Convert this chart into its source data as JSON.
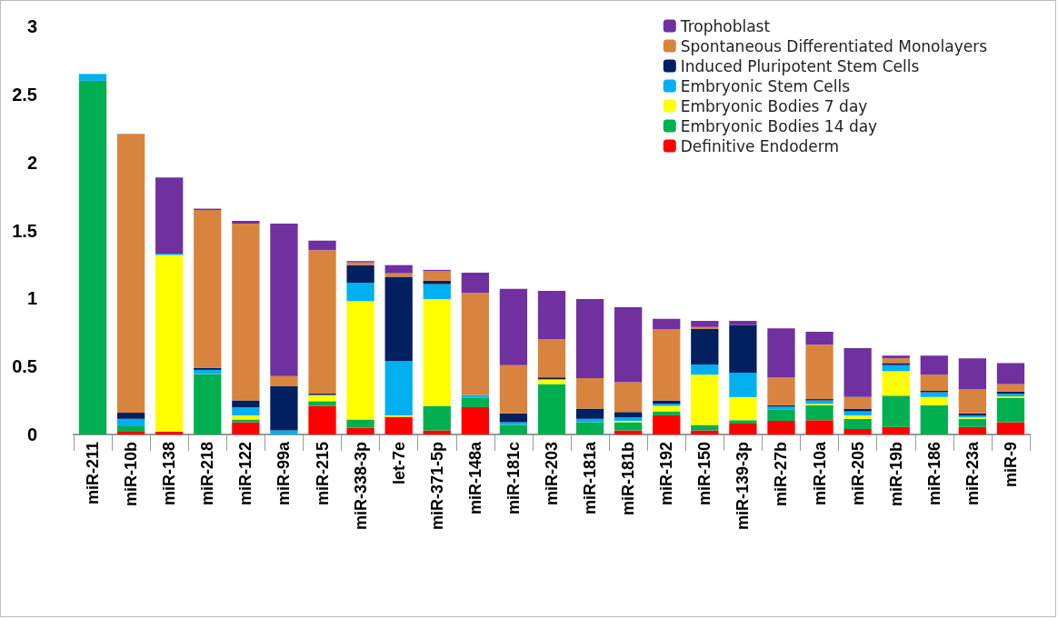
{
  "chart_data": {
    "type": "bar",
    "stacked": true,
    "categories": [
      "miR-211",
      "miR-10b",
      "miR-138",
      "miR-218",
      "miR-122",
      "miR-99a",
      "miR-215",
      "miR-338-3p",
      "let-7e",
      "miR-371-5p",
      "miR-148a",
      "miR-181c",
      "miR-203",
      "miR-181a",
      "miR-181b",
      "miR-192",
      "miR-150",
      "miR-139-3p",
      "miR-27b",
      "miR-10a",
      "miR-205",
      "miR-19b",
      "miR-186",
      "miR-23a",
      "miR-9"
    ],
    "series": [
      {
        "name": "Definitive Endoderm",
        "color": "#ff0000",
        "values": [
          0,
          0.02,
          0.02,
          0,
          0.09,
          0,
          0.21,
          0.05,
          0.13,
          0.03,
          0.2,
          0,
          0,
          0,
          0.03,
          0.14,
          0.03,
          0.08,
          0.1,
          0.105,
          0.04,
          0.055,
          0,
          0.055,
          0.09
        ]
      },
      {
        "name": "Embryonic Bodies 14 day",
        "color": "#00b050",
        "values": [
          2.6,
          0.04,
          0,
          0.445,
          0.02,
          0,
          0.035,
          0.06,
          0,
          0.18,
          0.07,
          0.07,
          0.37,
          0.09,
          0.06,
          0.03,
          0.04,
          0.025,
          0.085,
          0.11,
          0.075,
          0.23,
          0.215,
          0.06,
          0.18
        ]
      },
      {
        "name": "Embryonic Bodies 7 day",
        "color": "#ffff00",
        "values": [
          0,
          0,
          1.3,
          0,
          0.03,
          0,
          0.045,
          0.87,
          0.01,
          0.785,
          0,
          0,
          0.035,
          0,
          0.01,
          0.04,
          0.37,
          0.17,
          0,
          0.01,
          0.025,
          0.18,
          0.06,
          0.01,
          0.01
        ]
      },
      {
        "name": "Embryonic Stem Cells",
        "color": "#00b0f0",
        "values": [
          0.05,
          0.055,
          0.01,
          0.03,
          0.06,
          0.03,
          0,
          0.135,
          0.4,
          0.11,
          0.02,
          0.02,
          0,
          0.025,
          0.025,
          0.015,
          0.075,
          0.18,
          0.02,
          0.025,
          0.03,
          0.045,
          0.035,
          0.015,
          0.02
        ]
      },
      {
        "name": "Induced Pluripotent Stem Cells",
        "color": "#002060",
        "values": [
          0,
          0.045,
          0,
          0.015,
          0.05,
          0.325,
          0.01,
          0.13,
          0.62,
          0.025,
          0,
          0.065,
          0.015,
          0.075,
          0.04,
          0.025,
          0.26,
          0.35,
          0.01,
          0.01,
          0.02,
          0.015,
          0.01,
          0.015,
          0.015
        ]
      },
      {
        "name": "Spontaneous Differentiated Monolayers",
        "color": "#d9843e",
        "values": [
          0,
          2.05,
          0,
          1.16,
          1.3,
          0.075,
          1.055,
          0.02,
          0.025,
          0.07,
          0.75,
          0.355,
          0.28,
          0.225,
          0.22,
          0.525,
          0.015,
          0,
          0.205,
          0.4,
          0.085,
          0.035,
          0.12,
          0.175,
          0.055
        ]
      },
      {
        "name": "Trophoblast",
        "color": "#7030a0",
        "values": [
          0,
          0,
          0.56,
          0.01,
          0.02,
          1.12,
          0.07,
          0.01,
          0.06,
          0.01,
          0.15,
          0.56,
          0.355,
          0.58,
          0.55,
          0.075,
          0.045,
          0.03,
          0.36,
          0.095,
          0.36,
          0.02,
          0.14,
          0.23,
          0.155
        ]
      }
    ],
    "ylim": [
      0,
      3
    ],
    "yticks": [
      0,
      0.5,
      1,
      1.5,
      2,
      2.5,
      3
    ],
    "grid": false,
    "legend": "top right"
  }
}
